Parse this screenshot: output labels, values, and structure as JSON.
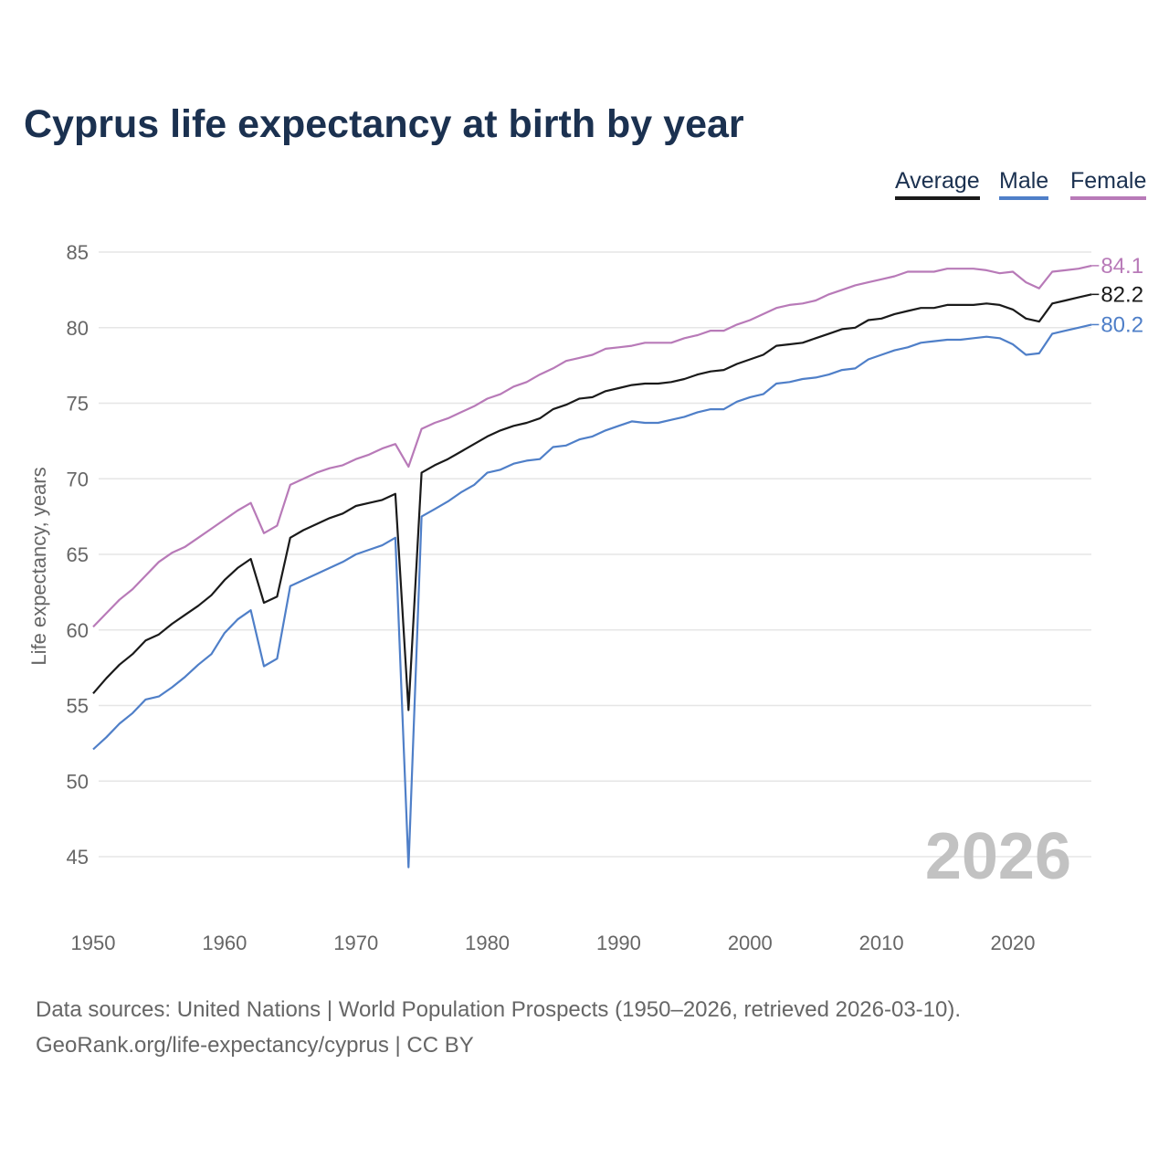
{
  "chart_data": {
    "type": "line",
    "title": "Cyprus life expectancy at birth by year",
    "xlabel": "",
    "ylabel": "Life expectancy, years",
    "xlim": [
      1950,
      2026
    ],
    "ylim": [
      42,
      86
    ],
    "yticks": [
      45,
      50,
      55,
      60,
      65,
      70,
      75,
      80,
      85
    ],
    "xticks": [
      1950,
      1960,
      1970,
      1980,
      1990,
      2000,
      2010,
      2020
    ],
    "grid": true,
    "legend_placement": "top-right",
    "watermark_year": "2026",
    "x_start": 1950,
    "series": [
      {
        "name": "Average",
        "color": "#1a1a1a",
        "end_label": "82.2",
        "values": [
          55.8,
          56.8,
          57.7,
          58.4,
          59.3,
          59.7,
          60.4,
          61.0,
          61.6,
          62.3,
          63.3,
          64.1,
          64.7,
          61.8,
          62.2,
          66.1,
          66.6,
          67.0,
          67.4,
          67.7,
          68.2,
          68.4,
          68.6,
          69.0,
          54.7,
          70.4,
          70.9,
          71.3,
          71.8,
          72.3,
          72.8,
          73.2,
          73.5,
          73.7,
          74.0,
          74.6,
          74.9,
          75.3,
          75.4,
          75.8,
          76.0,
          76.2,
          76.3,
          76.3,
          76.4,
          76.6,
          76.9,
          77.1,
          77.2,
          77.6,
          77.9,
          78.2,
          78.8,
          78.9,
          79.0,
          79.3,
          79.6,
          79.9,
          80.0,
          80.5,
          80.6,
          80.9,
          81.1,
          81.3,
          81.3,
          81.5,
          81.5,
          81.5,
          81.6,
          81.5,
          81.2,
          80.6,
          80.4,
          81.6,
          81.8,
          82.0,
          82.2
        ]
      },
      {
        "name": "Male",
        "color": "#4f7fc8",
        "end_label": "80.2",
        "values": [
          52.1,
          52.9,
          53.8,
          54.5,
          55.4,
          55.6,
          56.2,
          56.9,
          57.7,
          58.4,
          59.8,
          60.7,
          61.3,
          57.6,
          58.1,
          62.9,
          63.3,
          63.7,
          64.1,
          64.5,
          65.0,
          65.3,
          65.6,
          66.1,
          44.3,
          67.5,
          68.0,
          68.5,
          69.1,
          69.6,
          70.4,
          70.6,
          71.0,
          71.2,
          71.3,
          72.1,
          72.2,
          72.6,
          72.8,
          73.2,
          73.5,
          73.8,
          73.7,
          73.7,
          73.9,
          74.1,
          74.4,
          74.6,
          74.6,
          75.1,
          75.4,
          75.6,
          76.3,
          76.4,
          76.6,
          76.7,
          76.9,
          77.2,
          77.3,
          77.9,
          78.2,
          78.5,
          78.7,
          79.0,
          79.1,
          79.2,
          79.2,
          79.3,
          79.4,
          79.3,
          78.9,
          78.2,
          78.3,
          79.6,
          79.8,
          80.0,
          80.2
        ]
      },
      {
        "name": "Female",
        "color": "#b87ab8",
        "end_label": "84.1",
        "values": [
          60.2,
          61.1,
          62.0,
          62.7,
          63.6,
          64.5,
          65.1,
          65.5,
          66.1,
          66.7,
          67.3,
          67.9,
          68.4,
          66.4,
          66.9,
          69.6,
          70.0,
          70.4,
          70.7,
          70.9,
          71.3,
          71.6,
          72.0,
          72.3,
          70.8,
          73.3,
          73.7,
          74.0,
          74.4,
          74.8,
          75.3,
          75.6,
          76.1,
          76.4,
          76.9,
          77.3,
          77.8,
          78.0,
          78.2,
          78.6,
          78.7,
          78.8,
          79.0,
          79.0,
          79.0,
          79.3,
          79.5,
          79.8,
          79.8,
          80.2,
          80.5,
          80.9,
          81.3,
          81.5,
          81.6,
          81.8,
          82.2,
          82.5,
          82.8,
          83.0,
          83.2,
          83.4,
          83.7,
          83.7,
          83.7,
          83.9,
          83.9,
          83.9,
          83.8,
          83.6,
          83.7,
          83.0,
          82.6,
          83.7,
          83.8,
          83.9,
          84.1
        ]
      }
    ]
  },
  "footer": {
    "line1": "Data sources: United Nations | World Population Prospects (1950–2026, retrieved 2026-03-10).",
    "line2": "GeoRank.org/life-expectancy/cyprus | CC BY"
  }
}
